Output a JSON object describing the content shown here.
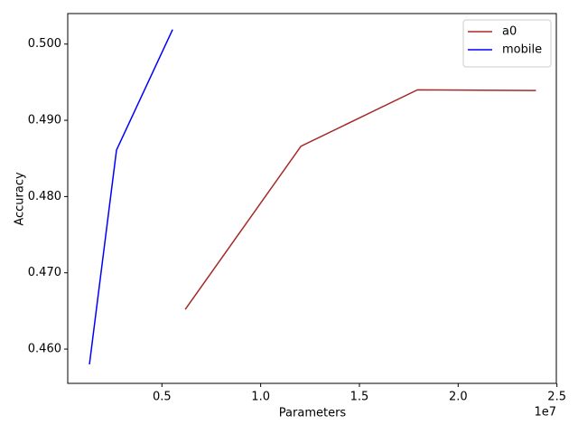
{
  "chart_data": {
    "type": "line",
    "xlabel": "Parameters",
    "ylabel": "Accuracy",
    "x_offset_label": "1e7",
    "series": [
      {
        "name": "a0",
        "color": "#a52a2a",
        "x": [
          0.618,
          1.204,
          1.794,
          2.394
        ],
        "values": [
          0.4652,
          0.4866,
          0.494,
          0.4939
        ]
      },
      {
        "name": "mobile",
        "color": "#0000ff",
        "x": [
          0.133,
          0.27,
          0.554
        ],
        "values": [
          0.458,
          0.4861,
          0.5019
        ]
      }
    ],
    "xlim": [
      0.023,
      2.497
    ],
    "xticks": [
      0.5,
      {
        "value": 1,
        "label": "1.0"
      },
      1.5,
      {
        "value": 2,
        "label": "2.0"
      },
      2.5
    ],
    "ylim": [
      0.4555,
      0.504
    ],
    "yticks": [
      {
        "value": 0.46,
        "label": "0.460"
      },
      {
        "value": 0.47,
        "label": "0.470"
      },
      {
        "value": 0.48,
        "label": "0.480"
      },
      {
        "value": 0.49,
        "label": "0.490"
      },
      {
        "value": 0.5,
        "label": "0.500"
      }
    ],
    "grid": false,
    "legend": "upper-right"
  }
}
